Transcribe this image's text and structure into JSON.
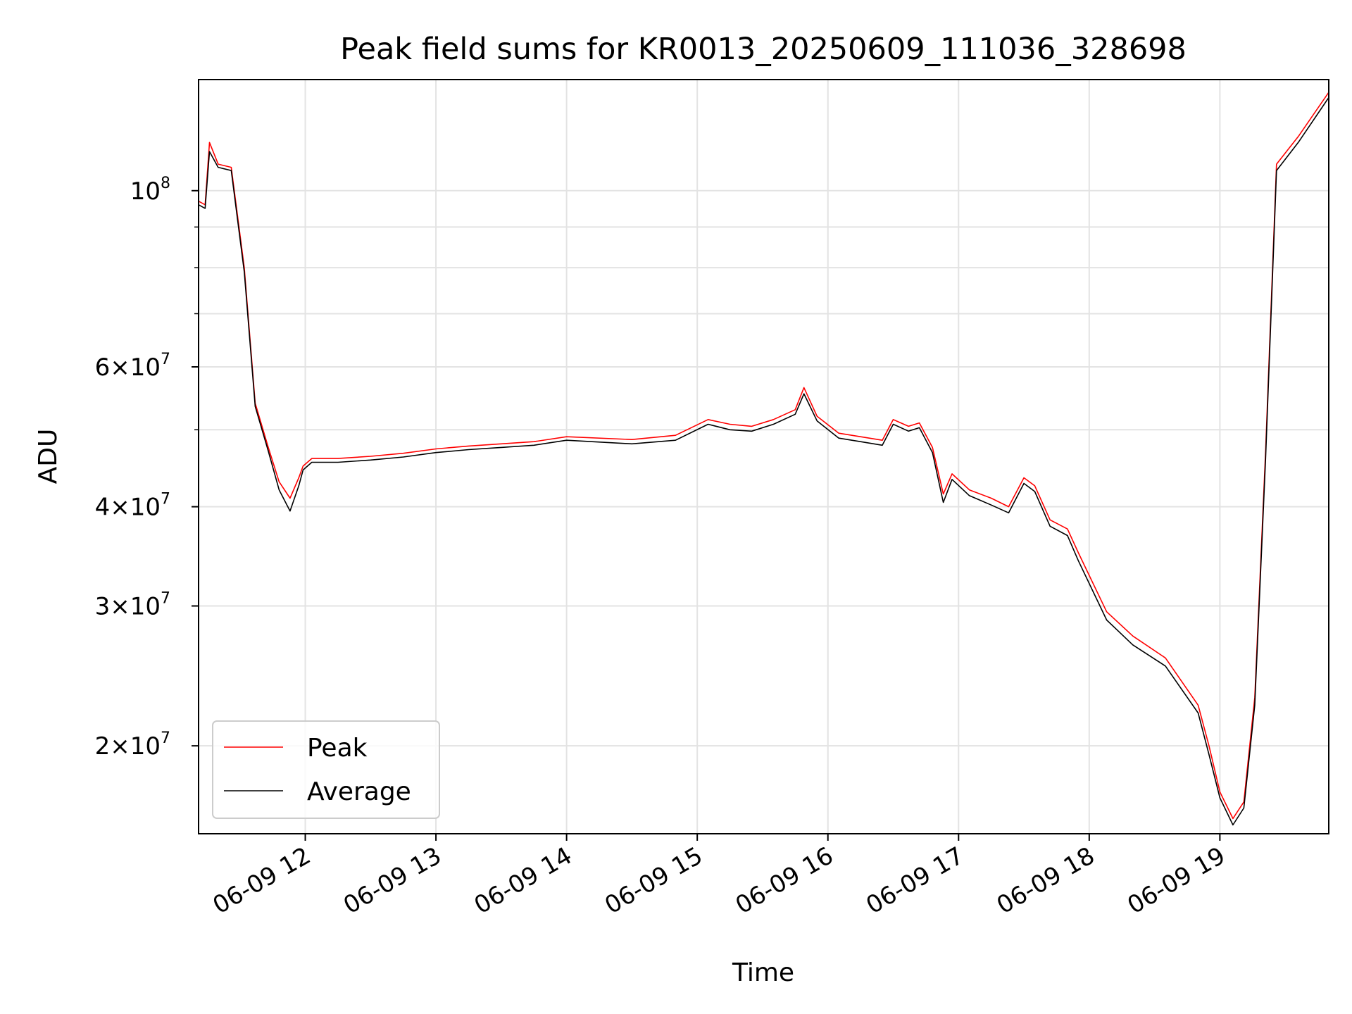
{
  "chart_data": {
    "type": "line",
    "title": "Peak field sums for KR0013_20250609_111036_328698",
    "xlabel": "Time",
    "ylabel": "ADU",
    "y_scale": "log",
    "ylim": [
      15500000,
      138000000
    ],
    "xlim": [
      "2025-06-09 11:11",
      "2025-06-09 19:50"
    ],
    "grid": true,
    "legend_position": "lower-left",
    "x_tick_labels": [
      "06-09 12",
      "06-09 13",
      "06-09 14",
      "06-09 15",
      "06-09 16",
      "06-09 17",
      "06-09 18",
      "06-09 19"
    ],
    "x_tick_times": [
      "2025-06-09 12:00",
      "2025-06-09 13:00",
      "2025-06-09 14:00",
      "2025-06-09 15:00",
      "2025-06-09 16:00",
      "2025-06-09 17:00",
      "2025-06-09 18:00",
      "2025-06-09 19:00"
    ],
    "y_ticks": [
      {
        "value": 100000000,
        "mantissa": "",
        "base": "10",
        "exp": "8"
      },
      {
        "value": 60000000,
        "mantissa": "6×",
        "base": "10",
        "exp": "7"
      },
      {
        "value": 40000000,
        "mantissa": "4×",
        "base": "10",
        "exp": "7"
      },
      {
        "value": 30000000,
        "mantissa": "3×",
        "base": "10",
        "exp": "7"
      },
      {
        "value": 20000000,
        "mantissa": "2×",
        "base": "10",
        "exp": "7"
      }
    ],
    "y_minor_ticks": [
      50000000,
      70000000,
      80000000,
      90000000
    ],
    "series": [
      {
        "name": "Peak",
        "color": "#ff0000",
        "x": [
          "2025-06-09 11:11",
          "2025-06-09 11:14",
          "2025-06-09 11:16",
          "2025-06-09 11:20",
          "2025-06-09 11:26",
          "2025-06-09 11:32",
          "2025-06-09 11:37",
          "2025-06-09 11:43",
          "2025-06-09 11:48",
          "2025-06-09 11:53",
          "2025-06-09 11:57",
          "2025-06-09 11:59",
          "2025-06-09 12:03",
          "2025-06-09 12:15",
          "2025-06-09 12:30",
          "2025-06-09 12:45",
          "2025-06-09 13:00",
          "2025-06-09 13:15",
          "2025-06-09 13:30",
          "2025-06-09 13:45",
          "2025-06-09 14:00",
          "2025-06-09 14:30",
          "2025-06-09 14:50",
          "2025-06-09 15:05",
          "2025-06-09 15:15",
          "2025-06-09 15:25",
          "2025-06-09 15:35",
          "2025-06-09 15:45",
          "2025-06-09 15:49",
          "2025-06-09 15:55",
          "2025-06-09 16:05",
          "2025-06-09 16:15",
          "2025-06-09 16:25",
          "2025-06-09 16:30",
          "2025-06-09 16:37",
          "2025-06-09 16:42",
          "2025-06-09 16:48",
          "2025-06-09 16:53",
          "2025-06-09 16:57",
          "2025-06-09 17:05",
          "2025-06-09 17:15",
          "2025-06-09 17:23",
          "2025-06-09 17:30",
          "2025-06-09 17:35",
          "2025-06-09 17:42",
          "2025-06-09 17:50",
          "2025-06-09 17:55",
          "2025-06-09 18:08",
          "2025-06-09 18:20",
          "2025-06-09 18:35",
          "2025-06-09 18:50",
          "2025-06-09 18:55",
          "2025-06-09 19:00",
          "2025-06-09 19:06",
          "2025-06-09 19:11",
          "2025-06-09 19:16",
          "2025-06-09 19:21",
          "2025-06-09 19:26",
          "2025-06-09 19:36",
          "2025-06-09 19:50"
        ],
        "y": [
          97000000,
          96000000,
          115000000,
          108000000,
          107000000,
          80000000,
          54000000,
          47500000,
          43000000,
          41000000,
          43500000,
          45000000,
          46000000,
          46000000,
          46300000,
          46700000,
          47300000,
          47700000,
          48000000,
          48300000,
          49000000,
          48600000,
          49200000,
          51500000,
          50800000,
          50500000,
          51500000,
          53000000,
          56500000,
          52000000,
          49500000,
          49000000,
          48500000,
          51500000,
          50500000,
          51000000,
          47500000,
          41500000,
          44000000,
          42000000,
          41000000,
          40000000,
          43500000,
          42500000,
          38500000,
          37500000,
          35000000,
          29500000,
          27500000,
          25800000,
          22500000,
          20000000,
          17500000,
          16200000,
          17000000,
          23000000,
          47000000,
          108000000,
          117000000,
          133000000
        ]
      },
      {
        "name": "Average",
        "color": "#000000",
        "x": [
          "2025-06-09 11:11",
          "2025-06-09 11:14",
          "2025-06-09 11:16",
          "2025-06-09 11:20",
          "2025-06-09 11:26",
          "2025-06-09 11:32",
          "2025-06-09 11:37",
          "2025-06-09 11:43",
          "2025-06-09 11:48",
          "2025-06-09 11:53",
          "2025-06-09 11:57",
          "2025-06-09 11:59",
          "2025-06-09 12:03",
          "2025-06-09 12:15",
          "2025-06-09 12:30",
          "2025-06-09 12:45",
          "2025-06-09 13:00",
          "2025-06-09 13:15",
          "2025-06-09 13:30",
          "2025-06-09 13:45",
          "2025-06-09 14:00",
          "2025-06-09 14:30",
          "2025-06-09 14:50",
          "2025-06-09 15:05",
          "2025-06-09 15:15",
          "2025-06-09 15:25",
          "2025-06-09 15:35",
          "2025-06-09 15:45",
          "2025-06-09 15:49",
          "2025-06-09 15:55",
          "2025-06-09 16:05",
          "2025-06-09 16:15",
          "2025-06-09 16:25",
          "2025-06-09 16:30",
          "2025-06-09 16:37",
          "2025-06-09 16:42",
          "2025-06-09 16:48",
          "2025-06-09 16:53",
          "2025-06-09 16:57",
          "2025-06-09 17:05",
          "2025-06-09 17:15",
          "2025-06-09 17:23",
          "2025-06-09 17:30",
          "2025-06-09 17:35",
          "2025-06-09 17:42",
          "2025-06-09 17:50",
          "2025-06-09 17:55",
          "2025-06-09 18:08",
          "2025-06-09 18:20",
          "2025-06-09 18:35",
          "2025-06-09 18:50",
          "2025-06-09 18:55",
          "2025-06-09 19:00",
          "2025-06-09 19:06",
          "2025-06-09 19:11",
          "2025-06-09 19:16",
          "2025-06-09 19:21",
          "2025-06-09 19:26",
          "2025-06-09 19:36",
          "2025-06-09 19:50"
        ],
        "y": [
          96000000,
          95000000,
          112000000,
          107000000,
          106000000,
          79000000,
          53500000,
          47000000,
          42000000,
          39500000,
          42500000,
          44500000,
          45500000,
          45500000,
          45800000,
          46200000,
          46800000,
          47200000,
          47500000,
          47800000,
          48500000,
          48000000,
          48500000,
          50800000,
          50000000,
          49800000,
          50800000,
          52300000,
          55500000,
          51300000,
          48800000,
          48300000,
          47800000,
          50800000,
          49800000,
          50300000,
          46800000,
          40500000,
          43300000,
          41300000,
          40200000,
          39300000,
          42800000,
          41800000,
          37800000,
          36800000,
          34200000,
          28800000,
          26800000,
          25200000,
          22000000,
          19500000,
          17200000,
          15900000,
          16700000,
          22500000,
          46000000,
          106000000,
          115000000,
          131000000
        ]
      }
    ]
  }
}
